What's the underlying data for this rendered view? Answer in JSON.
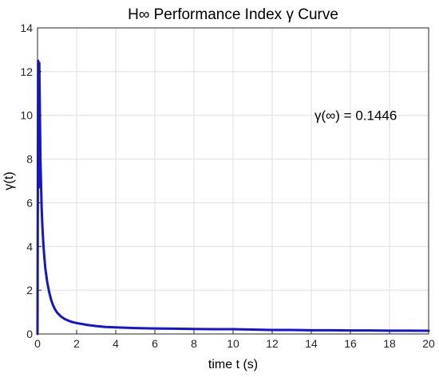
{
  "chart_data": {
    "type": "line",
    "title": "H∞ Performance Index γ Curve",
    "xlabel": "time t (s)",
    "ylabel": "γ(t)",
    "xlim": [
      0,
      20
    ],
    "ylim": [
      0,
      14
    ],
    "xticks": [
      0,
      2,
      4,
      6,
      8,
      10,
      12,
      14,
      16,
      18,
      20
    ],
    "yticks": [
      0,
      2,
      4,
      6,
      8,
      10,
      12,
      14
    ],
    "xtick_labels": [
      "0",
      "2",
      "4",
      "6",
      "8",
      "10",
      "12",
      "14",
      "16",
      "18",
      "20"
    ],
    "ytick_labels": [
      "0",
      "2",
      "4",
      "6",
      "8",
      "10",
      "12",
      "14"
    ],
    "grid": true,
    "annotation": "γ(∞) = 0.1446",
    "annotation_position": {
      "x": 14,
      "y": 10
    },
    "series": [
      {
        "color": "#1414d8",
        "x": [
          0,
          0.03,
          0.06,
          0.09,
          0.12,
          0.15,
          0.18,
          0.21,
          0.25,
          0.3,
          0.35,
          0.4,
          0.5,
          0.6,
          0.7,
          0.8,
          0.9,
          1.0,
          1.2,
          1.4,
          1.6,
          1.8,
          2.0,
          2.5,
          3.0,
          3.5,
          4.0,
          5.0,
          6.0,
          7.0,
          8.0,
          9.0,
          10.0,
          11.0,
          12.0,
          13.0,
          14.0,
          15.0,
          16.0,
          17.0,
          18.0,
          19.0,
          20.0
        ],
        "values": [
          0,
          12.5,
          6.7,
          12.4,
          10.2,
          8.0,
          6.9,
          5.8,
          4.9,
          4.1,
          3.5,
          3.0,
          2.35,
          1.9,
          1.55,
          1.3,
          1.12,
          0.98,
          0.8,
          0.68,
          0.6,
          0.54,
          0.5,
          0.42,
          0.36,
          0.32,
          0.3,
          0.27,
          0.25,
          0.24,
          0.23,
          0.22,
          0.22,
          0.2,
          0.18,
          0.18,
          0.17,
          0.17,
          0.16,
          0.16,
          0.15,
          0.15,
          0.145
        ]
      }
    ]
  }
}
